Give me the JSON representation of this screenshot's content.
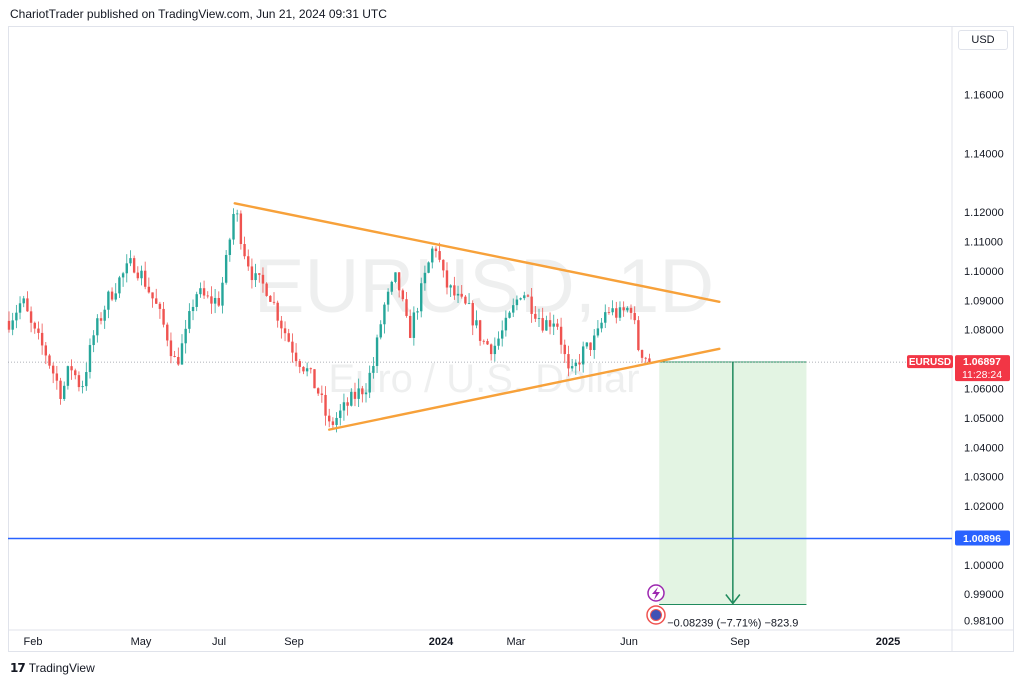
{
  "header": {
    "caption": "ChariotTrader published on TradingView.com, Jun 21, 2024 09:31 UTC"
  },
  "footer": {
    "logo_icon": "tradingview-logo-icon",
    "brand": "TradingView"
  },
  "price_scale": {
    "currency": "USD"
  },
  "watermark": {
    "symbol": "EURUSD, 1D",
    "description": "Euro / U.S. Dollar"
  },
  "chart_data": {
    "type": "candlestick",
    "symbol": "EURUSD",
    "interval": "1D",
    "x_ticks": [
      "Feb",
      "May",
      "Jul",
      "Sep",
      "2024",
      "Mar",
      "Jun",
      "Sep",
      "2025"
    ],
    "x_range": [
      "2023-01-15",
      "2025-02-20"
    ],
    "y_range": [
      0.9785,
      1.183
    ],
    "y_ticks": [
      {
        "value": 1.16,
        "label": "1.16000"
      },
      {
        "value": 1.14,
        "label": "1.14000"
      },
      {
        "value": 1.12,
        "label": "1.12000"
      },
      {
        "value": 1.11,
        "label": "1.11000"
      },
      {
        "value": 1.1,
        "label": "1.10000"
      },
      {
        "value": 1.09,
        "label": "1.09000"
      },
      {
        "value": 1.08,
        "label": "1.08000"
      },
      {
        "value": 1.06,
        "label": "1.06000"
      },
      {
        "value": 1.05,
        "label": "1.05000"
      },
      {
        "value": 1.04,
        "label": "1.04000"
      },
      {
        "value": 1.03,
        "label": "1.03000"
      },
      {
        "value": 1.02,
        "label": "1.02000"
      },
      {
        "value": 1.0,
        "label": "1.00000"
      },
      {
        "value": 0.99,
        "label": "0.99000"
      },
      {
        "value": 0.981,
        "label": "0.98100"
      }
    ],
    "series": [
      {
        "name": "EURUSD",
        "close": [
          [
            "2023-01-15",
            1.083
          ],
          [
            "2023-01-26",
            1.09
          ],
          [
            "2023-02-03",
            1.08
          ],
          [
            "2023-02-14",
            1.072
          ],
          [
            "2023-02-27",
            1.058
          ],
          [
            "2023-03-06",
            1.068
          ],
          [
            "2023-03-15",
            1.06
          ],
          [
            "2023-03-25",
            1.078
          ],
          [
            "2023-04-05",
            1.09
          ],
          [
            "2023-04-15",
            1.097
          ],
          [
            "2023-04-26",
            1.103
          ],
          [
            "2023-05-04",
            1.098
          ],
          [
            "2023-05-15",
            1.088
          ],
          [
            "2023-05-24",
            1.078
          ],
          [
            "2023-05-31",
            1.068
          ],
          [
            "2023-06-08",
            1.078
          ],
          [
            "2023-06-16",
            1.093
          ],
          [
            "2023-06-26",
            1.09
          ],
          [
            "2023-07-05",
            1.09
          ],
          [
            "2023-07-10",
            1.1
          ],
          [
            "2023-07-18",
            1.122
          ],
          [
            "2023-07-25",
            1.108
          ],
          [
            "2023-08-03",
            1.097
          ],
          [
            "2023-08-14",
            1.094
          ],
          [
            "2023-08-25",
            1.082
          ],
          [
            "2023-09-05",
            1.072
          ],
          [
            "2023-09-15",
            1.066
          ],
          [
            "2023-09-25",
            1.058
          ],
          [
            "2023-10-03",
            1.047
          ],
          [
            "2023-10-13",
            1.052
          ],
          [
            "2023-10-23",
            1.057
          ],
          [
            "2023-11-02",
            1.061
          ],
          [
            "2023-11-08",
            1.068
          ],
          [
            "2023-11-16",
            1.087
          ],
          [
            "2023-11-27",
            1.098
          ],
          [
            "2023-12-07",
            1.078
          ],
          [
            "2023-12-15",
            1.09
          ],
          [
            "2023-12-28",
            1.11
          ],
          [
            "2024-01-05",
            1.096
          ],
          [
            "2024-01-16",
            1.09
          ],
          [
            "2024-01-26",
            1.086
          ],
          [
            "2024-02-05",
            1.076
          ],
          [
            "2024-02-14",
            1.074
          ],
          [
            "2024-02-25",
            1.082
          ],
          [
            "2024-03-08",
            1.094
          ],
          [
            "2024-03-15",
            1.089
          ],
          [
            "2024-03-26",
            1.082
          ],
          [
            "2024-04-05",
            1.084
          ],
          [
            "2024-04-16",
            1.063
          ],
          [
            "2024-04-26",
            1.072
          ],
          [
            "2024-05-08",
            1.077
          ],
          [
            "2024-05-16",
            1.087
          ],
          [
            "2024-05-27",
            1.085
          ],
          [
            "2024-06-05",
            1.088
          ],
          [
            "2024-06-11",
            1.074
          ],
          [
            "2024-06-21",
            1.06897
          ]
        ]
      }
    ],
    "last_price": {
      "value": 1.06897,
      "label": "1.06897",
      "countdown": "11:28:24",
      "symbol": "EURUSD",
      "color": "#f23645"
    },
    "trendlines": [
      {
        "name": "upper",
        "from": [
          "2023-07-18",
          1.123
        ],
        "to": [
          "2024-08-16",
          1.0895
        ],
        "color": "#f7a13a"
      },
      {
        "name": "lower",
        "from": [
          "2023-10-03",
          1.046
        ],
        "to": [
          "2024-08-16",
          1.0735
        ],
        "color": "#f7a13a"
      }
    ],
    "support_line": {
      "value": 1.00896,
      "label": "1.00896",
      "color": "#2962ff"
    },
    "projection": {
      "x_start": "2024-06-28",
      "x_end": "2024-10-26",
      "y_top": 1.069,
      "y_bottom": 0.9865,
      "label": "−0.08239 (−7.71%) −823.9",
      "fill": "#e3f4e3",
      "stroke": "#1f8a5d"
    },
    "grid": false,
    "legend": "none"
  },
  "colors": {
    "up": "#26a69a",
    "down": "#ef5350",
    "trend": "#f7a13a",
    "support": "#2962ff"
  },
  "icons": {
    "flash": "lightning-circle-icon",
    "events": "economic-events-icon"
  }
}
